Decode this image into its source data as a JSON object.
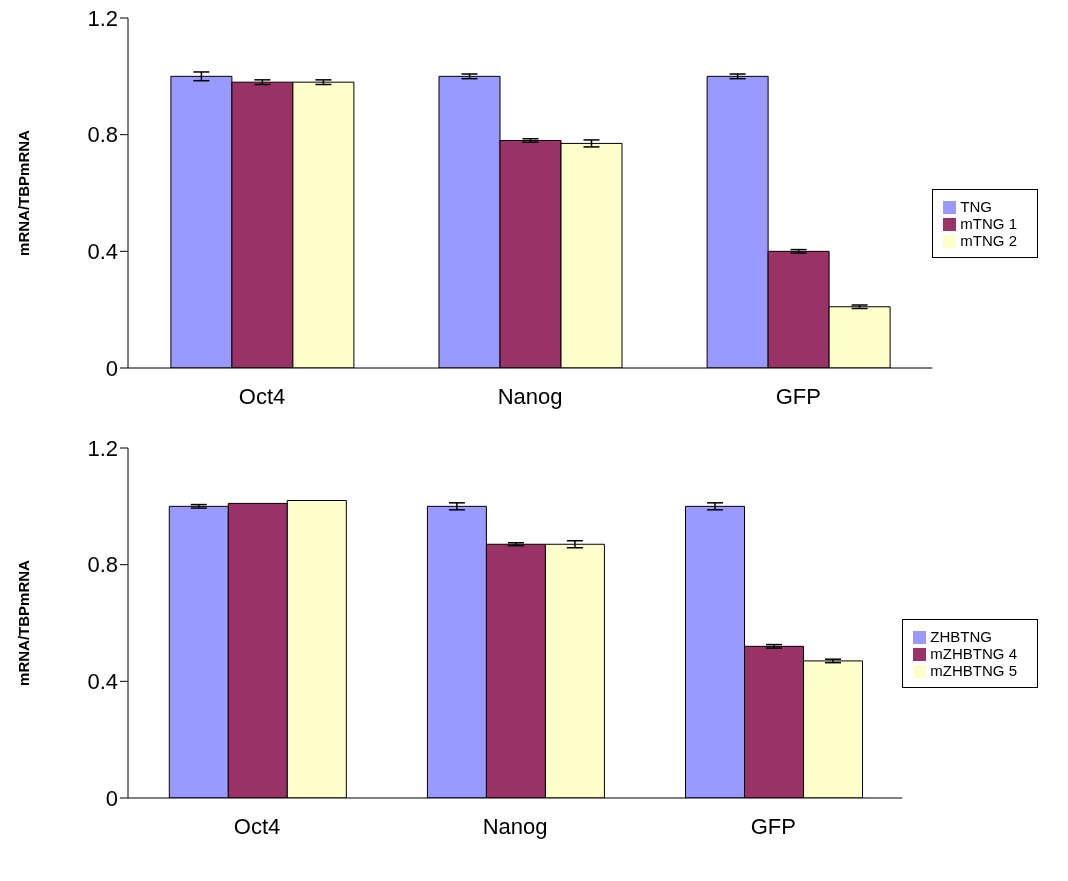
{
  "chart_data": [
    {
      "type": "bar",
      "ylabel": "mRNA/TBPmRNA",
      "categories": [
        "Oct4",
        "Nanog",
        "GFP"
      ],
      "ylim": [
        0,
        1.2
      ],
      "yticks": [
        0,
        0.4,
        0.8,
        1.2
      ],
      "legend": "right",
      "series": [
        {
          "name": "TNG",
          "color": "#9999ff",
          "values": [
            1.0,
            1.0,
            1.0
          ],
          "errors": [
            0.015,
            0.008,
            0.008
          ]
        },
        {
          "name": "mTNG 1",
          "color": "#993366",
          "values": [
            0.98,
            0.78,
            0.4
          ],
          "errors": [
            0.008,
            0.006,
            0.006
          ]
        },
        {
          "name": "mTNG 2",
          "color": "#ffffcc",
          "values": [
            0.98,
            0.77,
            0.21
          ],
          "errors": [
            0.008,
            0.012,
            0.006
          ]
        }
      ]
    },
    {
      "type": "bar",
      "ylabel": "mRNA/TBPmRNA",
      "categories": [
        "Oct4",
        "Nanog",
        "GFP"
      ],
      "ylim": [
        0,
        1.2
      ],
      "yticks": [
        0,
        0.4,
        0.8,
        1.2
      ],
      "legend": "right",
      "series": [
        {
          "name": "ZHBTNG",
          "color": "#9999ff",
          "values": [
            1.0,
            1.0,
            1.0
          ],
          "errors": [
            0.006,
            0.012,
            0.012
          ]
        },
        {
          "name": "mZHBTNG 4",
          "color": "#993366",
          "values": [
            1.01,
            0.87,
            0.52
          ],
          "errors": [
            null,
            0.005,
            0.006
          ]
        },
        {
          "name": "mZHBTNG 5",
          "color": "#ffffcc",
          "values": [
            1.02,
            0.87,
            0.47
          ],
          "errors": [
            null,
            0.012,
            0.006
          ]
        }
      ]
    }
  ]
}
